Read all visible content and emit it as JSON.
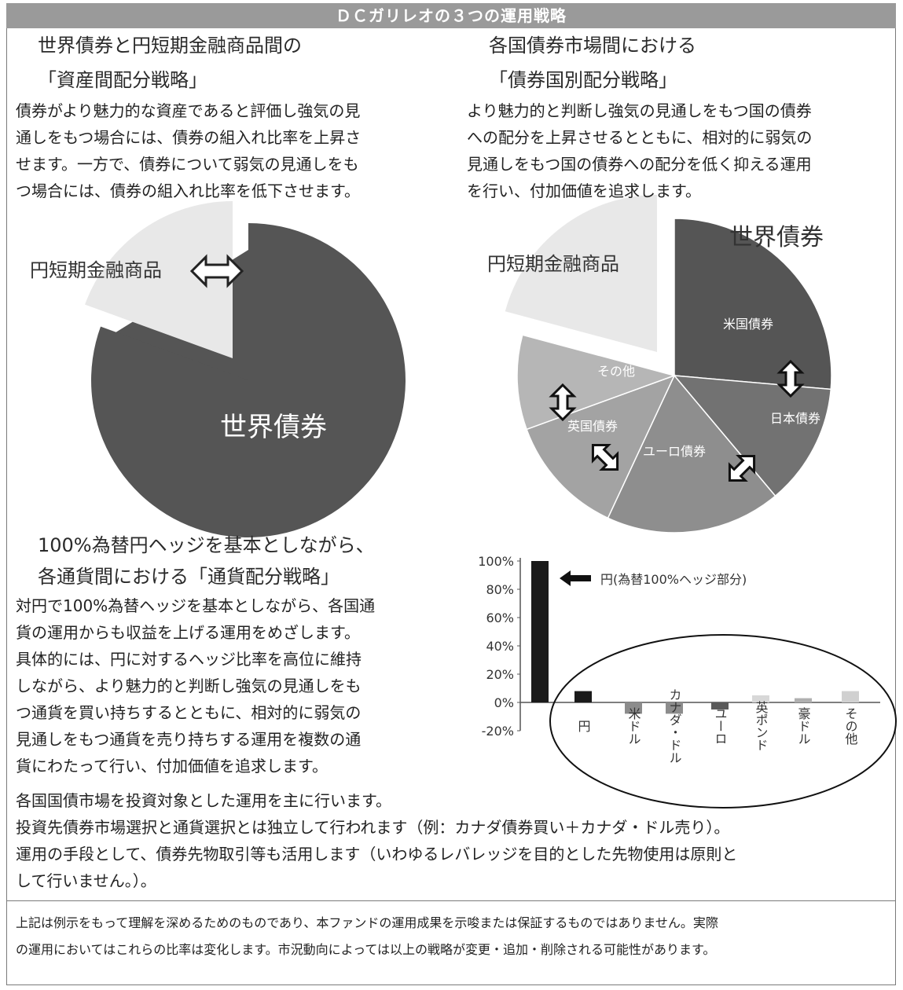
{
  "title": "ＤＣガリレオの３つの運用戦略",
  "strategy1": {
    "heading_line1": "世界債券と円短期金融商品間の",
    "heading_line2": "「資産間配分戦略」",
    "body_lines": [
      "債券がより魅力的な資産であると評価し強気の見",
      "通しをもつ場合には、債券の組入れ比率を上昇さ",
      "せます。一方で、債券について弱気の見通しをも",
      "つ場合には、債券の組入れ比率を低下させます。"
    ],
    "pie_label_short": "円短期金融商品",
    "pie_label_bond": "世界債券"
  },
  "strategy2": {
    "heading_line1": "各国債券市場間における",
    "heading_line2": "「債券国別配分戦略」",
    "body_lines": [
      "より魅力的と判断し強気の見通しをもつ国の債券",
      "への配分を上昇させるとともに、相対的に弱気の",
      "見通しをもつ国の債券への配分を低く抑える運用",
      "を行い、付加価値を追求します。"
    ],
    "pie_title": "世界債券",
    "pie_label_short": "円短期金融商品",
    "segments": {
      "us": "米国債券",
      "jp": "日本債券",
      "eu": "ユーロ債券",
      "uk": "英国債券",
      "other": "その他"
    }
  },
  "strategy3": {
    "heading_line1": "100%為替円ヘッジを基本としながら、",
    "heading_line2": "各通貨間における「通貨配分戦略」",
    "body_lines": [
      "対円で100%為替ヘッジを基本としながら、各国通",
      "貨の運用からも収益を上げる運用をめざします。",
      "具体的には、円に対するヘッジ比率を高位に維持",
      "しながら、より魅力的と判断し強気の見通しをも",
      "つ通貨を買い持ちするとともに、相対的に弱気の",
      "見通しをもつ通貨を売り持ちする運用を複数の通",
      "貨にわたって行い、付加価値を追求します。"
    ]
  },
  "chart_data": {
    "type": "bar",
    "annotation": "円(為替100%ヘッジ部分)",
    "y_ticks": [
      "100%",
      "80%",
      "60%",
      "40%",
      "20%",
      "0%",
      "-20%"
    ],
    "ylim": [
      -20,
      100
    ],
    "hedge_bar": {
      "value": 100,
      "color": "#1a1a1a"
    },
    "categories": [
      "円",
      "米ドル",
      "カナダ・ドル",
      "ユーロ",
      "英ポンド",
      "豪ドル",
      "その他"
    ],
    "values": [
      8,
      -8,
      -8,
      -5,
      5,
      3,
      8
    ],
    "colors": [
      "#1a1a1a",
      "#8c8c8c",
      "#8c8c8c",
      "#5a5a5a",
      "#d8d8d8",
      "#b0b0b0",
      "#d0d0d0"
    ]
  },
  "notes": [
    "各国国債市場を投資対象とした運用を主に行います。",
    "投資先債券市場選択と通貨選択とは独立して行われます（例：カナダ債券買い＋カナダ・ドル売り）。",
    "運用の手段として、債券先物取引等も活用します（いわゆるレバレッジを目的とした先物使用は原則と",
    "して行いません。）。"
  ],
  "footnote": [
    "上記は例示をもって理解を深めるためのものであり、本ファンドの運用成果を示唆または保証するものではありません。実際",
    "の運用においてはこれらの比率は変化します。市況動向によっては以上の戦略が変更・追加・削除される可能性があります。"
  ]
}
